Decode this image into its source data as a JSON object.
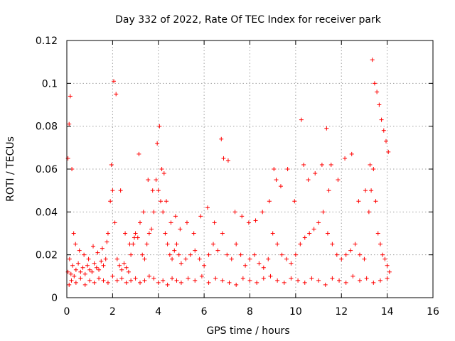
{
  "chart_data": {
    "type": "scatter",
    "title": "Day 332 of 2022, Rate Of TEC Index for receiver park",
    "xlabel": "GPS time / hours",
    "ylabel": "ROTI / TECUs",
    "xlim": [
      0,
      16
    ],
    "ylim": [
      0,
      0.12
    ],
    "xticks": [
      "0",
      "2",
      "4",
      "6",
      "8",
      "10",
      "12",
      "14",
      "16"
    ],
    "yticks": [
      "0",
      "0.02",
      "0.04",
      "0.06",
      "0.08",
      "0.1",
      "0.12"
    ],
    "grid": true,
    "marker": "plus",
    "color": "#ff0000",
    "series": [
      {
        "name": "ROTI",
        "x": [
          0.05,
          0.12,
          0.18,
          0.25,
          0.32,
          0.4,
          0.5,
          0.6,
          0.7,
          0.8,
          0.9,
          1.0,
          1.1,
          1.2,
          1.3,
          1.4,
          1.5,
          1.6,
          1.7,
          1.8,
          1.9,
          2.0,
          2.1,
          2.2,
          2.3,
          2.4,
          2.5,
          2.6,
          2.7,
          2.8,
          2.9,
          3.0,
          3.1,
          3.2,
          3.3,
          3.4,
          3.5,
          3.6,
          3.7,
          3.8,
          3.9,
          4.0,
          4.1,
          4.2,
          4.3,
          4.4,
          4.5,
          4.6,
          4.7,
          4.8,
          4.9,
          5.0,
          5.2,
          5.4,
          5.6,
          5.8,
          6.0,
          6.2,
          6.4,
          6.6,
          6.8,
          7.0,
          7.2,
          7.4,
          7.6,
          7.8,
          8.0,
          8.2,
          8.4,
          8.6,
          8.8,
          9.0,
          9.2,
          9.4,
          9.6,
          9.8,
          10.0,
          10.2,
          10.4,
          10.6,
          10.8,
          11.0,
          11.2,
          11.4,
          11.6,
          11.8,
          12.0,
          12.2,
          12.4,
          12.6,
          12.8,
          13.0,
          13.2,
          13.3,
          13.4,
          13.5,
          13.6,
          13.7,
          13.8,
          13.9,
          14.0,
          14.1,
          0.05,
          0.1,
          0.15,
          0.22,
          0.3,
          0.38,
          0.55,
          0.75,
          0.95,
          1.15,
          1.35,
          1.55,
          1.75,
          1.95,
          2.05,
          2.15,
          2.35,
          2.55,
          2.75,
          2.95,
          3.15,
          3.35,
          3.55,
          3.75,
          3.95,
          4.05,
          4.15,
          4.25,
          4.35,
          4.55,
          4.75,
          4.95,
          5.25,
          5.55,
          5.85,
          6.15,
          6.45,
          6.75,
          6.85,
          7.05,
          7.35,
          7.65,
          7.95,
          8.25,
          8.55,
          8.85,
          9.05,
          9.15,
          9.35,
          9.65,
          9.95,
          10.25,
          10.35,
          10.55,
          10.85,
          11.15,
          11.35,
          11.45,
          11.55,
          11.85,
          12.15,
          12.45,
          12.75,
          13.05,
          13.25,
          13.35,
          13.45,
          13.55,
          13.65,
          13.75,
          13.85,
          13.95,
          14.05,
          0.1,
          0.2,
          0.4,
          0.6,
          0.8,
          1.0,
          1.2,
          1.4,
          1.6,
          1.8,
          2.0,
          2.2,
          2.4,
          2.6,
          2.8,
          3.0,
          3.2,
          3.4,
          3.6,
          3.8,
          4.0,
          4.2,
          4.4,
          4.6,
          4.8,
          5.0,
          5.3,
          5.6,
          5.9,
          6.2,
          6.5,
          6.8,
          7.1,
          7.4,
          7.7,
          8.0,
          8.3,
          8.6,
          8.9,
          9.2,
          9.5,
          9.8,
          10.1,
          10.4,
          10.7,
          11.0,
          11.3,
          11.6,
          11.9,
          12.2,
          12.5,
          12.8,
          13.1,
          13.4,
          13.7,
          14.0
        ],
        "y": [
          0.012,
          0.018,
          0.011,
          0.015,
          0.01,
          0.013,
          0.016,
          0.012,
          0.014,
          0.011,
          0.015,
          0.013,
          0.012,
          0.016,
          0.014,
          0.013,
          0.017,
          0.015,
          0.018,
          0.03,
          0.045,
          0.05,
          0.035,
          0.018,
          0.015,
          0.013,
          0.016,
          0.014,
          0.012,
          0.02,
          0.025,
          0.03,
          0.028,
          0.035,
          0.02,
          0.018,
          0.025,
          0.03,
          0.032,
          0.04,
          0.055,
          0.05,
          0.045,
          0.04,
          0.03,
          0.025,
          0.02,
          0.018,
          0.022,
          0.025,
          0.02,
          0.016,
          0.018,
          0.02,
          0.022,
          0.018,
          0.015,
          0.02,
          0.025,
          0.022,
          0.03,
          0.02,
          0.018,
          0.025,
          0.02,
          0.015,
          0.018,
          0.02,
          0.016,
          0.014,
          0.018,
          0.03,
          0.025,
          0.02,
          0.018,
          0.016,
          0.02,
          0.025,
          0.028,
          0.03,
          0.032,
          0.035,
          0.04,
          0.03,
          0.025,
          0.02,
          0.018,
          0.02,
          0.022,
          0.025,
          0.02,
          0.018,
          0.04,
          0.05,
          0.06,
          0.045,
          0.03,
          0.025,
          0.02,
          0.018,
          0.015,
          0.012,
          0.065,
          0.081,
          0.094,
          0.06,
          0.03,
          0.025,
          0.022,
          0.02,
          0.018,
          0.024,
          0.021,
          0.023,
          0.026,
          0.062,
          0.101,
          0.095,
          0.05,
          0.03,
          0.025,
          0.028,
          0.067,
          0.04,
          0.055,
          0.05,
          0.072,
          0.08,
          0.06,
          0.058,
          0.045,
          0.035,
          0.038,
          0.032,
          0.035,
          0.03,
          0.038,
          0.042,
          0.035,
          0.074,
          0.065,
          0.064,
          0.04,
          0.038,
          0.035,
          0.036,
          0.04,
          0.045,
          0.06,
          0.055,
          0.052,
          0.06,
          0.045,
          0.083,
          0.062,
          0.055,
          0.058,
          0.062,
          0.079,
          0.05,
          0.062,
          0.055,
          0.065,
          0.067,
          0.045,
          0.05,
          0.062,
          0.111,
          0.1,
          0.096,
          0.09,
          0.083,
          0.078,
          0.073,
          0.068,
          0.006,
          0.008,
          0.007,
          0.009,
          0.006,
          0.008,
          0.007,
          0.009,
          0.008,
          0.007,
          0.01,
          0.008,
          0.009,
          0.007,
          0.008,
          0.009,
          0.007,
          0.008,
          0.01,
          0.009,
          0.007,
          0.008,
          0.006,
          0.009,
          0.008,
          0.007,
          0.009,
          0.008,
          0.01,
          0.007,
          0.009,
          0.008,
          0.007,
          0.006,
          0.009,
          0.008,
          0.007,
          0.009,
          0.01,
          0.008,
          0.007,
          0.009,
          0.008,
          0.007,
          0.009,
          0.008,
          0.006,
          0.009,
          0.008,
          0.007,
          0.01,
          0.008,
          0.009,
          0.007,
          0.008,
          0.009
        ]
      }
    ]
  }
}
